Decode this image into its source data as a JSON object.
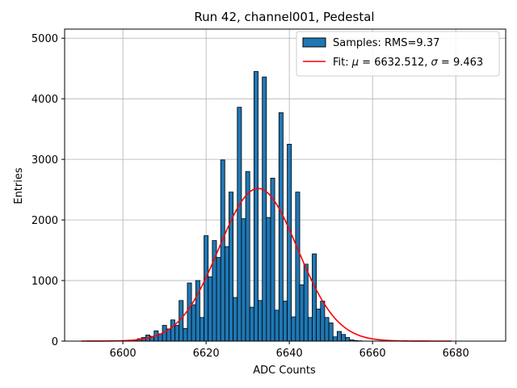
{
  "chart_data": {
    "type": "bar",
    "title": "Run 42, channel001, Pedestal",
    "xlabel": "ADC Counts",
    "ylabel": "Entries",
    "xlim": [
      6586,
      6692
    ],
    "ylim": [
      0,
      5150
    ],
    "xticks": [
      6600,
      6620,
      6640,
      6660,
      6680
    ],
    "yticks": [
      0,
      1000,
      2000,
      3000,
      4000,
      5000
    ],
    "grid": true,
    "legend_position": "top-right",
    "colors": {
      "bar": "#1f77b4",
      "bar_edge": "#000000",
      "fit": "#ff0000"
    },
    "histogram": {
      "name": "Samples: RMS=9.37",
      "bin_width": 1,
      "x": [
        6602,
        6603,
        6604,
        6605,
        6606,
        6607,
        6608,
        6609,
        6610,
        6611,
        6612,
        6613,
        6614,
        6615,
        6616,
        6617,
        6618,
        6619,
        6620,
        6621,
        6622,
        6623,
        6624,
        6625,
        6626,
        6627,
        6628,
        6629,
        6630,
        6631,
        6632,
        6633,
        6634,
        6635,
        6636,
        6637,
        6638,
        6639,
        6640,
        6641,
        6642,
        6643,
        6644,
        6645,
        6646,
        6647,
        6648,
        6649,
        6650,
        6651,
        6652,
        6653,
        6654,
        6655,
        6656,
        6657,
        6658,
        6659,
        6660,
        6661,
        6662,
        6663
      ],
      "values": [
        10,
        15,
        40,
        60,
        100,
        80,
        170,
        120,
        260,
        200,
        350,
        260,
        670,
        210,
        960,
        600,
        1000,
        390,
        1740,
        1060,
        1660,
        1380,
        2990,
        1560,
        2460,
        720,
        3860,
        2020,
        2800,
        560,
        4450,
        670,
        4360,
        2040,
        2690,
        510,
        3770,
        660,
        3250,
        400,
        2460,
        930,
        1270,
        390,
        1440,
        530,
        660,
        390,
        300,
        70,
        160,
        110,
        60,
        20,
        10,
        5,
        0,
        0,
        0,
        0,
        0,
        0
      ]
    },
    "fit": {
      "name_prefix": "Fit: ",
      "mu_label": "μ",
      "mu_value": "6632.512",
      "sigma_label": "σ",
      "sigma_value": "9.463",
      "mu": 6632.512,
      "sigma": 9.463,
      "amplitude": 2520,
      "x_range": [
        6590,
        6679
      ]
    }
  }
}
